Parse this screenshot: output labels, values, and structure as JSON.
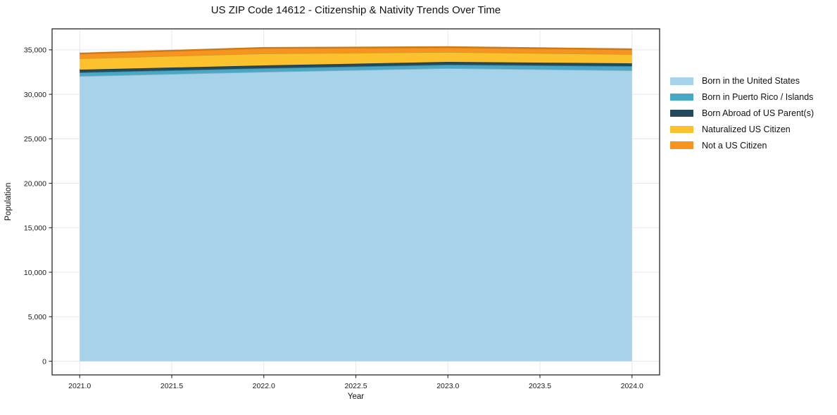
{
  "title": "US ZIP Code 14612 - Citizenship & Nativity Trends Over Time",
  "chart_data": {
    "type": "area",
    "stacked": true,
    "title": "US ZIP Code 14612 - Citizenship & Nativity Trends Over Time",
    "xlabel": "Year",
    "ylabel": "Population",
    "x": [
      2021,
      2022,
      2023,
      2024
    ],
    "series": [
      {
        "name": "Born in the United States",
        "color": "#a7d3ea",
        "values": [
          32050,
          32530,
          32930,
          32690
        ]
      },
      {
        "name": "Born in Puerto Rico / Islands",
        "color": "#47a9c5",
        "values": [
          400,
          400,
          395,
          475
        ]
      },
      {
        "name": "Born Abroad of US Parent(s)",
        "color": "#24495a",
        "values": [
          320,
          315,
          320,
          315
        ]
      },
      {
        "name": "Naturalized US Citizen",
        "color": "#fcc22d",
        "values": [
          1265,
          1345,
          1105,
          1030
        ]
      },
      {
        "name": "Not a US Citizen",
        "color": "#f7941f",
        "values": [
          550,
          630,
          555,
          550
        ]
      }
    ],
    "stack_totals": [
      34585,
      35220,
      35305,
      35060
    ],
    "x_ticks": [
      "2021.0",
      "2021.5",
      "2022.0",
      "2022.5",
      "2023.0",
      "2023.5",
      "2024.0"
    ],
    "x_tick_values": [
      2021,
      2021.5,
      2022,
      2022.5,
      2023,
      2023.5,
      2024
    ],
    "y_ticks": [
      "0",
      "5,000",
      "10,000",
      "15,000",
      "20,000",
      "25,000",
      "30,000",
      "35,000"
    ],
    "y_tick_values": [
      0,
      5000,
      10000,
      15000,
      20000,
      25000,
      30000,
      35000
    ],
    "xlim": [
      2020.85,
      2024.15
    ],
    "ylim": [
      -1540,
      37360
    ],
    "grid": true,
    "grid_color": "#e7e7e7",
    "spine_color": "#262626",
    "legend_position": "right"
  }
}
